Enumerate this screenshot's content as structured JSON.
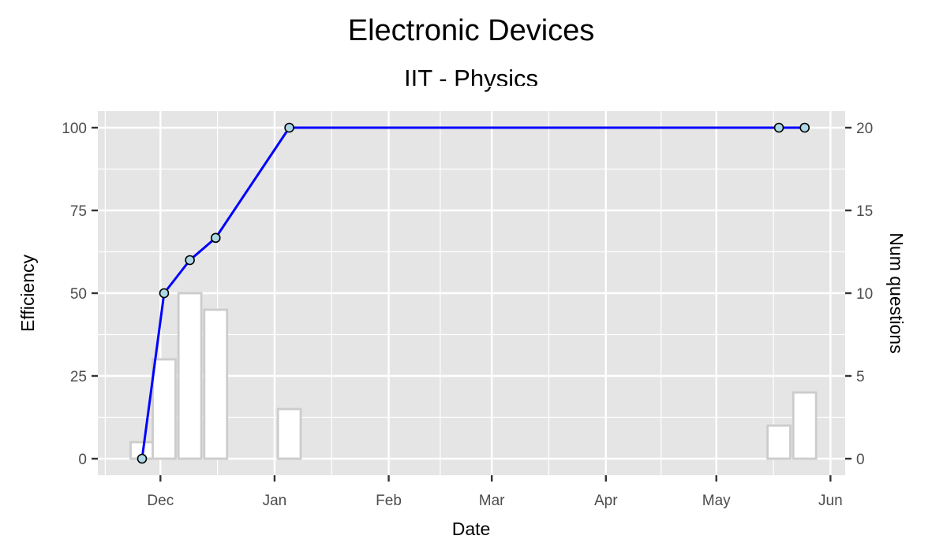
{
  "chart_data": {
    "type": "bar+line",
    "title": "Electronic Devices",
    "subtitle": "IIT - Physics",
    "xlabel": "Date",
    "ylabel": "Efficiency",
    "y2label": "Num questions",
    "xlim": [
      "2017-11-14",
      "2018-06-05"
    ],
    "ylim": [
      -5,
      105
    ],
    "y2lim": [
      -1,
      21
    ],
    "x_ticks": [
      {
        "date": "2017-12-01",
        "label": "Dec"
      },
      {
        "date": "2018-01-01",
        "label": "Jan"
      },
      {
        "date": "2018-02-01",
        "label": "Feb"
      },
      {
        "date": "2018-03-01",
        "label": "Mar"
      },
      {
        "date": "2018-04-01",
        "label": "Apr"
      },
      {
        "date": "2018-05-01",
        "label": "May"
      },
      {
        "date": "2018-06-01",
        "label": "Jun"
      }
    ],
    "y_ticks": [
      0,
      25,
      50,
      75,
      100
    ],
    "y2_ticks": [
      0,
      5,
      10,
      15,
      20
    ],
    "grid": true,
    "panel_background": "#e5e5e5",
    "line_series": {
      "color": "#0000ff",
      "point_fill": "#add8e6",
      "points": [
        {
          "x": "2017-11-26",
          "y": 0
        },
        {
          "x": "2017-12-02",
          "y": 50
        },
        {
          "x": "2017-12-09",
          "y": 60
        },
        {
          "x": "2017-12-16",
          "y": 66.7
        },
        {
          "x": "2018-01-05",
          "y": 100
        },
        {
          "x": "2018-05-18",
          "y": 100
        },
        {
          "x": "2018-05-25",
          "y": 100
        }
      ]
    },
    "bar_series": {
      "fill": "#ffffff",
      "stroke": "#cccccc",
      "bars": [
        {
          "x": "2017-11-26",
          "value": 1
        },
        {
          "x": "2017-12-02",
          "value": 6
        },
        {
          "x": "2017-12-09",
          "value": 10
        },
        {
          "x": "2017-12-16",
          "value": 9
        },
        {
          "x": "2018-01-05",
          "value": 3
        },
        {
          "x": "2018-05-18",
          "value": 2
        },
        {
          "x": "2018-05-25",
          "value": 4
        }
      ]
    }
  }
}
